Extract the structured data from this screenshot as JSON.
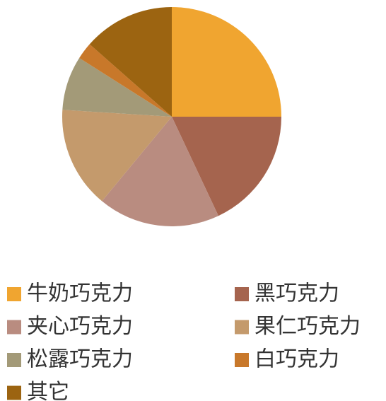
{
  "chart_data": {
    "type": "pie",
    "categories": [
      "牛奶巧克力",
      "黑巧克力",
      "夹心巧克力",
      "果仁巧克力",
      "松露巧克力",
      "白巧克力",
      "其它"
    ],
    "values": [
      25,
      18,
      18,
      15,
      8,
      2.5,
      13.5
    ],
    "colors": [
      "#f0a530",
      "#a5644e",
      "#b98c80",
      "#c49a6c",
      "#a39a78",
      "#c8782a",
      "#9c6411"
    ],
    "legend": "bottom"
  }
}
